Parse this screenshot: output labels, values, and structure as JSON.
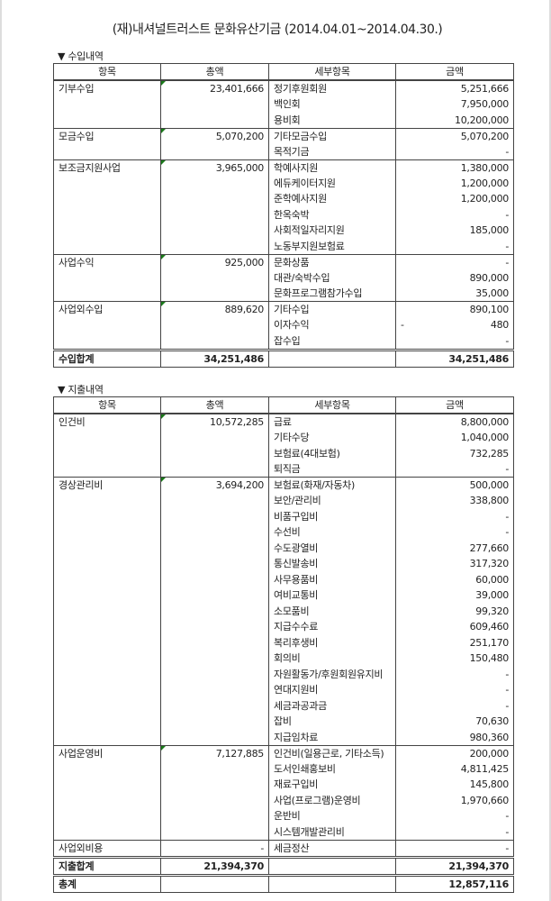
{
  "title": "(재)내셔널트러스트 문화유산기금 (2014.04.01~2014.04.30.)",
  "headers": [
    "항목",
    "총액",
    "세부항목",
    "금액"
  ],
  "income": {
    "section_label": "▼ 수입내역",
    "groups": [
      {
        "name": "기부수입",
        "total": "23,401,666",
        "items": [
          {
            "label": "정기후원회원",
            "amount": "5,251,666"
          },
          {
            "label": "백인회",
            "amount": "7,950,000"
          },
          {
            "label": "용비회",
            "amount": "10,200,000"
          }
        ]
      },
      {
        "name": "모금수입",
        "total": "5,070,200",
        "items": [
          {
            "label": "기타모금수입",
            "amount": "5,070,200"
          },
          {
            "label": "목적기금",
            "amount": "-"
          }
        ]
      },
      {
        "name": "보조금지원사업",
        "total": "3,965,000",
        "items": [
          {
            "label": "학예사지원",
            "amount": "1,380,000"
          },
          {
            "label": "에듀케이터지원",
            "amount": "1,200,000"
          },
          {
            "label": "준학예사지원",
            "amount": "1,200,000"
          },
          {
            "label": "한옥숙박",
            "amount": "-"
          },
          {
            "label": "사회적일자리지원",
            "amount": "185,000"
          },
          {
            "label": "노동부지원보험료",
            "amount": "-"
          }
        ]
      },
      {
        "name": "사업수익",
        "total": "925,000",
        "items": [
          {
            "label": "문화상품",
            "amount": "-"
          },
          {
            "label": "대관/숙박수입",
            "amount": "890,000"
          },
          {
            "label": "문화프로그램참가수입",
            "amount": "35,000"
          }
        ]
      },
      {
        "name": "사업외수입",
        "total": "889,620",
        "items": [
          {
            "label": "기타수입",
            "amount": "890,100"
          },
          {
            "label": "이자수익",
            "sign": "-",
            "amount": "480"
          },
          {
            "label": "잡수입",
            "amount": "-"
          }
        ]
      }
    ],
    "sums": [
      {
        "label": "수입합계",
        "total": "34,251,486",
        "amount": "34,251,486"
      }
    ]
  },
  "expense": {
    "section_label": "▼ 지출내역",
    "groups": [
      {
        "name": "인건비",
        "total": "10,572,285",
        "items": [
          {
            "label": "급료",
            "amount": "8,800,000"
          },
          {
            "label": "기타수당",
            "amount": "1,040,000"
          },
          {
            "label": "보험료(4대보험)",
            "amount": "732,285"
          },
          {
            "label": "퇴직금",
            "amount": "-"
          }
        ]
      },
      {
        "name": "경상관리비",
        "total": "3,694,200",
        "items": [
          {
            "label": "보험료(화재/자동차)",
            "amount": "500,000"
          },
          {
            "label": "보안/관리비",
            "amount": "338,800"
          },
          {
            "label": "비품구입비",
            "amount": "-"
          },
          {
            "label": "수선비",
            "amount": "-"
          },
          {
            "label": "수도광열비",
            "amount": "277,660"
          },
          {
            "label": "통신발송비",
            "amount": "317,320"
          },
          {
            "label": "사무용품비",
            "amount": "60,000"
          },
          {
            "label": "여비교통비",
            "amount": "39,000"
          },
          {
            "label": "소모품비",
            "amount": "99,320"
          },
          {
            "label": "지급수수료",
            "amount": "609,460"
          },
          {
            "label": "복리후생비",
            "amount": "251,170"
          },
          {
            "label": "회의비",
            "amount": "150,480"
          },
          {
            "label": "자원활동가/후원회원유지비",
            "amount": "-"
          },
          {
            "label": "연대지원비",
            "amount": "-"
          },
          {
            "label": "세금과공과금",
            "amount": "-"
          },
          {
            "label": "잡비",
            "amount": "70,630"
          },
          {
            "label": "지급임차료",
            "amount": "980,360"
          }
        ]
      },
      {
        "name": "사업운영비",
        "total": "7,127,885",
        "items": [
          {
            "label": "인건비(일용근로, 기타소득)",
            "amount": "200,000"
          },
          {
            "label": "도서인쇄홍보비",
            "amount": "4,811,425"
          },
          {
            "label": "재료구입비",
            "amount": "145,800"
          },
          {
            "label": "사업(프로그램)운영비",
            "amount": "1,970,660"
          },
          {
            "label": "운반비",
            "amount": "-"
          },
          {
            "label": "시스템개발관리비",
            "amount": "-"
          }
        ]
      },
      {
        "name": "사업외비용",
        "total": "-",
        "nomark": true,
        "items": [
          {
            "label": "세금정산",
            "amount": "-"
          }
        ]
      }
    ],
    "sums": [
      {
        "label": "지출합계",
        "total": "21,394,370",
        "amount": "21,394,370"
      },
      {
        "label": "총계",
        "total": "",
        "amount": "12,857,116"
      }
    ]
  },
  "colors": {
    "comment_marker": "#1a7a1a",
    "border": "#444444"
  }
}
